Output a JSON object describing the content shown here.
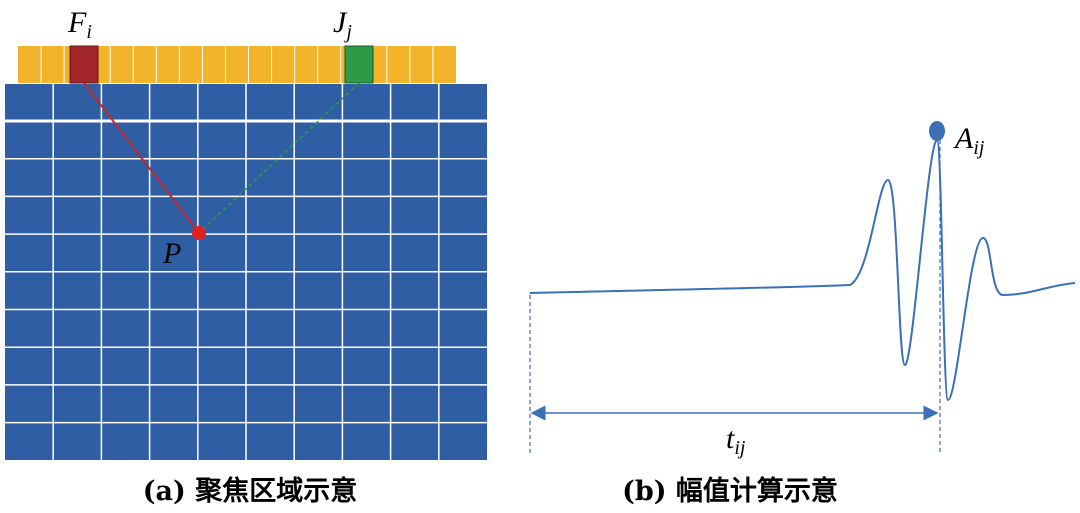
{
  "panel_a": {
    "source": {
      "main": "F",
      "sub": "i"
    },
    "receiver": {
      "main": "J",
      "sub": "j"
    },
    "point": "P",
    "caption": "(a) 聚焦区域示意"
  },
  "panel_b": {
    "amplitude": {
      "main": "A",
      "sub": "ij"
    },
    "time": {
      "main": "t",
      "sub": "ij"
    },
    "caption": "(b) 幅值计算示意"
  }
}
